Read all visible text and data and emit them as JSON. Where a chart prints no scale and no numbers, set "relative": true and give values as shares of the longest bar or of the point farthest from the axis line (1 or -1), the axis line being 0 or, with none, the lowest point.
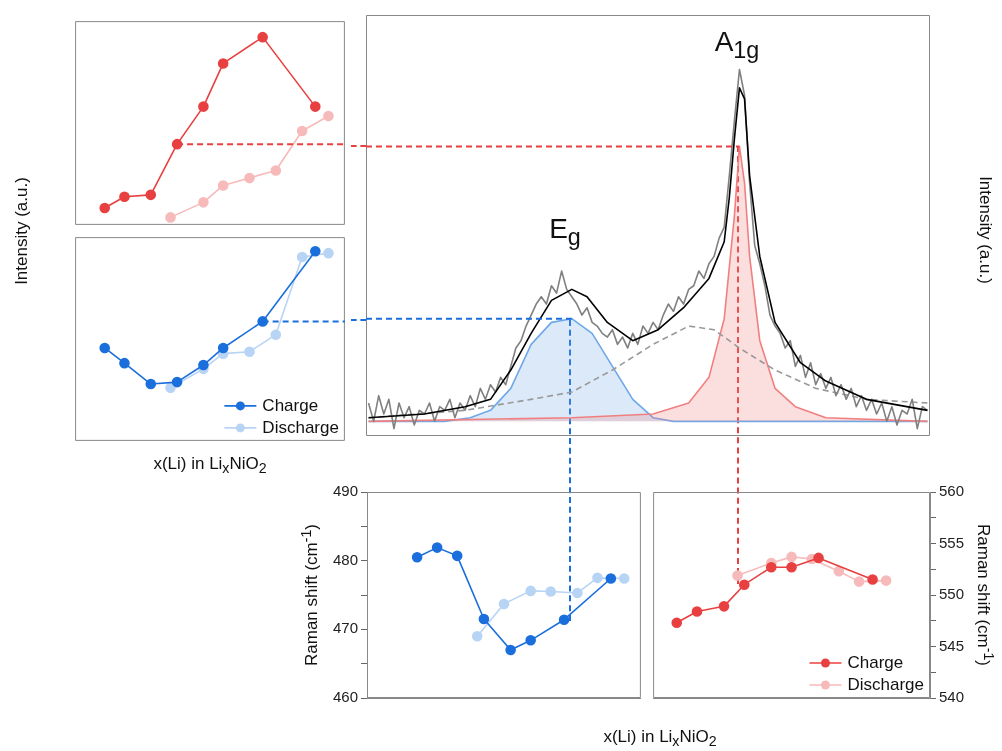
{
  "chart_data": [
    {
      "type": "line",
      "relative": true,
      "ylabel": "Intensity (a.u.)",
      "marker": "circle",
      "tick_labels": false,
      "ref_lines": [
        {
          "axis": "y",
          "value": 0.43,
          "color": "#e84040",
          "line_style": "dashed"
        }
      ],
      "categories": [
        null,
        null,
        null,
        null,
        null,
        null,
        null,
        null,
        null,
        null,
        null,
        null,
        null,
        null,
        null,
        null,
        null,
        null,
        null,
        null,
        null,
        null,
        null,
        null,
        null,
        null,
        null,
        null,
        null,
        null,
        null,
        null,
        null,
        null,
        null,
        null,
        null,
        null,
        null,
        null,
        null
      ],
      "series": [
        {
          "color": "#e84040",
          "values": [
            null,
            null,
            null,
            null,
            0.09,
            null,
            null,
            0.15,
            null,
            null,
            null,
            0.16,
            null,
            null,
            null,
            0.43,
            null,
            null,
            null,
            0.63,
            null,
            null,
            0.86,
            null,
            null,
            null,
            null,
            null,
            1,
            null,
            null,
            null,
            null,
            null,
            null,
            null,
            0.63,
            null,
            null,
            null,
            null
          ]
        },
        {
          "color": "#f7baba",
          "values": [
            null,
            null,
            null,
            null,
            null,
            null,
            null,
            null,
            null,
            null,
            null,
            null,
            null,
            null,
            0.04,
            null,
            null,
            null,
            null,
            0.12,
            null,
            null,
            0.21,
            null,
            null,
            null,
            0.25,
            null,
            null,
            null,
            0.29,
            null,
            null,
            null,
            0.5,
            null,
            null,
            null,
            0.58,
            null,
            null
          ]
        }
      ]
    },
    {
      "type": "line",
      "relative": true,
      "xlabel": "x(Li) in Li$_{x}$NiO$_{2}$",
      "marker": "circle",
      "tick_labels": false,
      "legend": "bottom right",
      "ref_lines": [
        {
          "axis": "y",
          "value": 0.63,
          "color": "#1a6fdc",
          "line_style": "dashed"
        }
      ],
      "categories": [
        null,
        null,
        null,
        null,
        null,
        null,
        null,
        null,
        null,
        null,
        null,
        null,
        null,
        null,
        null,
        null,
        null,
        null,
        null,
        null,
        null,
        null,
        null,
        null,
        null,
        null,
        null,
        null,
        null,
        null,
        null,
        null,
        null,
        null,
        null,
        null,
        null,
        null,
        null,
        null,
        null
      ],
      "series": [
        {
          "name": "Charge",
          "color": "#1a6fdc",
          "values": [
            null,
            null,
            null,
            null,
            0.49,
            null,
            null,
            0.41,
            null,
            null,
            null,
            0.3,
            null,
            null,
            null,
            0.31,
            null,
            null,
            null,
            0.4,
            null,
            null,
            0.49,
            null,
            null,
            null,
            null,
            null,
            0.63,
            null,
            null,
            null,
            null,
            null,
            null,
            null,
            1,
            null,
            null,
            null,
            null
          ]
        },
        {
          "name": "Discharge",
          "color": "#b8d4f5",
          "values": [
            null,
            null,
            null,
            null,
            null,
            null,
            null,
            null,
            null,
            null,
            null,
            null,
            null,
            null,
            0.28,
            null,
            null,
            null,
            null,
            0.38,
            null,
            null,
            0.46,
            null,
            null,
            null,
            0.47,
            null,
            null,
            null,
            0.56,
            null,
            null,
            null,
            0.97,
            null,
            null,
            null,
            0.99,
            null,
            null
          ]
        }
      ]
    },
    {
      "type": "line",
      "relative": true,
      "ylabel": "Intensity (a.u.)",
      "marker": "none",
      "tick_labels": false,
      "annotations": [
        "E$_{g}$",
        "A$_{1g}$"
      ],
      "ref_lines": [
        {
          "axis": "y",
          "value": 0.79,
          "color": "#e84040",
          "line_style": "dashed"
        },
        {
          "axis": "y",
          "value": 0.32,
          "color": "#1a6fdc",
          "line_style": "dashed"
        }
      ],
      "categories": [
        null,
        null,
        null,
        null,
        null,
        null,
        null,
        null,
        null,
        null,
        null,
        null,
        null,
        null,
        null,
        null,
        null,
        null,
        null,
        null,
        null,
        null,
        null,
        null,
        null,
        null,
        null,
        null,
        null,
        null,
        null,
        null,
        null,
        null,
        null,
        null,
        null,
        null,
        null,
        null,
        null,
        null,
        null,
        null,
        null,
        null,
        null,
        null,
        null,
        null,
        null,
        null,
        null,
        null,
        null,
        null,
        null,
        null,
        null,
        null,
        null,
        null,
        null,
        null,
        null,
        null,
        null,
        null,
        null,
        null,
        null,
        null,
        null,
        null,
        null,
        null,
        null,
        null,
        null,
        null,
        null,
        null,
        null,
        null,
        null,
        null,
        null,
        null,
        null,
        null,
        null,
        null,
        null,
        null,
        null,
        null,
        null,
        null,
        null,
        null,
        null,
        null,
        null,
        null,
        null,
        null,
        null,
        null,
        null,
        null,
        null
      ],
      "series": [
        {
          "type": "area",
          "color": "#6fa8e8",
          "values": [
            0.04,
            null,
            null,
            null,
            null,
            null,
            null,
            null,
            null,
            null,
            null,
            null,
            null,
            null,
            null,
            0.04,
            null,
            null,
            null,
            null,
            0.05,
            null,
            null,
            null,
            0.07,
            null,
            null,
            null,
            0.13,
            null,
            null,
            null,
            0.25,
            null,
            null,
            null,
            0.31,
            null,
            null,
            null,
            0.32,
            null,
            null,
            null,
            0.28,
            null,
            null,
            null,
            0.19,
            null,
            null,
            null,
            0.1,
            null,
            null,
            null,
            0.05,
            null,
            null,
            null,
            0.04,
            null,
            null,
            null,
            null,
            null,
            null,
            null,
            null,
            null,
            null,
            null,
            null,
            null,
            null,
            null,
            null,
            null,
            null,
            null,
            null,
            null,
            null,
            null,
            null,
            null,
            null,
            null,
            null,
            null,
            null,
            null,
            null,
            null,
            null,
            null,
            null,
            null,
            null,
            null,
            null,
            null,
            null,
            null,
            null,
            null,
            null,
            null,
            null,
            null,
            0.04
          ]
        },
        {
          "type": "area",
          "color": "#f08080",
          "values": [
            0.04,
            null,
            null,
            null,
            null,
            null,
            null,
            null,
            null,
            null,
            null,
            null,
            null,
            null,
            null,
            null,
            null,
            null,
            null,
            null,
            null,
            null,
            null,
            null,
            null,
            null,
            null,
            null,
            null,
            null,
            null,
            null,
            null,
            null,
            null,
            null,
            null,
            null,
            null,
            null,
            0.05,
            null,
            null,
            null,
            null,
            null,
            null,
            null,
            null,
            null,
            null,
            null,
            null,
            null,
            null,
            null,
            0.06,
            null,
            null,
            null,
            null,
            null,
            null,
            0.09,
            null,
            null,
            null,
            0.16,
            null,
            null,
            0.32,
            null,
            0.6,
            0.79,
            0.69,
            0.49,
            null,
            0.26,
            null,
            null,
            0.13,
            null,
            null,
            null,
            0.08,
            null,
            null,
            null,
            null,
            null,
            0.05,
            null,
            null,
            null,
            null,
            null,
            null,
            null,
            null,
            null,
            null,
            null,
            null,
            null,
            null,
            null,
            null,
            null,
            null,
            null,
            0.04
          ]
        },
        {
          "color": "#999999",
          "line_style": "dashed",
          "values": [
            0.05,
            null,
            null,
            null,
            null,
            null,
            null,
            null,
            null,
            null,
            null,
            null,
            null,
            null,
            null,
            null,
            null,
            null,
            null,
            0.07,
            null,
            null,
            null,
            null,
            null,
            null,
            null,
            null,
            null,
            null,
            null,
            null,
            0.1,
            null,
            null,
            null,
            null,
            null,
            null,
            null,
            0.12,
            null,
            null,
            null,
            null,
            null,
            null,
            null,
            0.18,
            null,
            null,
            null,
            null,
            null,
            null,
            null,
            0.25,
            null,
            null,
            null,
            null,
            null,
            null,
            0.3,
            null,
            null,
            null,
            null,
            0.29,
            null,
            null,
            null,
            null,
            0.24,
            null,
            null,
            null,
            null,
            null,
            null,
            0.18,
            null,
            null,
            null,
            null,
            null,
            null,
            null,
            0.13,
            null,
            null,
            null,
            null,
            null,
            null,
            null,
            null,
            null,
            0.1,
            null,
            null,
            null,
            null,
            null,
            null,
            null,
            null,
            null,
            null,
            null,
            0.09
          ]
        },
        {
          "color": "#808080",
          "values": [
            0.09,
            0.04,
            0.11,
            0.06,
            0.1,
            0.02,
            0.09,
            0.05,
            0.08,
            0.03,
            0.07,
            0.06,
            0.09,
            0.04,
            0.08,
            0.07,
            0.1,
            0.05,
            0.09,
            0.07,
            0.11,
            0.08,
            0.13,
            0.1,
            0.14,
            0.12,
            0.16,
            0.14,
            0.19,
            0.24,
            0.26,
            0.3,
            0.33,
            0.36,
            0.38,
            0.36,
            0.41,
            0.39,
            0.45,
            0.4,
            0.38,
            0.36,
            0.33,
            0.35,
            0.31,
            0.3,
            0.28,
            0.27,
            0.29,
            0.25,
            0.27,
            0.24,
            0.28,
            0.25,
            0.3,
            0.28,
            0.31,
            0.29,
            0.33,
            0.36,
            0.34,
            0.38,
            0.36,
            0.4,
            0.41,
            0.45,
            0.43,
            0.47,
            0.49,
            0.54,
            0.57,
            0.71,
            0.86,
            1,
            0.93,
            0.69,
            0.52,
            0.47,
            0.41,
            0.33,
            0.3,
            0.28,
            0.24,
            0.26,
            0.19,
            0.22,
            0.16,
            0.2,
            0.14,
            0.17,
            0.13,
            0.16,
            0.11,
            0.14,
            0.1,
            0.13,
            0.08,
            0.11,
            0.07,
            0.1,
            0.06,
            0.09,
            0.04,
            0.08,
            0.03,
            0.07,
            0.06,
            0.1,
            0.02,
            0.08,
            0.07
          ]
        },
        {
          "color": "#000000",
          "values": [
            0.05,
            null,
            null,
            null,
            null,
            null,
            null,
            null,
            null,
            null,
            null,
            0.06,
            null,
            null,
            null,
            null,
            null,
            null,
            null,
            0.08,
            null,
            null,
            null,
            null,
            0.1,
            null,
            null,
            null,
            0.18,
            null,
            null,
            null,
            0.28,
            null,
            null,
            null,
            0.37,
            null,
            null,
            null,
            0.4,
            null,
            null,
            0.38,
            null,
            null,
            null,
            0.31,
            null,
            null,
            null,
            null,
            0.26,
            null,
            null,
            null,
            null,
            0.29,
            null,
            null,
            null,
            null,
            0.35,
            null,
            null,
            null,
            null,
            0.43,
            null,
            null,
            0.53,
            0.65,
            0.81,
            0.95,
            0.92,
            0.71,
            null,
            0.49,
            null,
            null,
            0.31,
            null,
            null,
            null,
            null,
            0.2,
            null,
            null,
            null,
            null,
            0.15,
            null,
            null,
            null,
            null,
            null,
            null,
            null,
            0.1,
            null,
            null,
            null,
            null,
            null,
            null,
            null,
            null,
            null,
            null,
            null,
            0.07
          ]
        }
      ]
    },
    {
      "type": "line",
      "ylabel": "Raman shift (cm$^{-1}$)",
      "marker": "circle",
      "tick_labels": "y",
      "ylim": [
        460,
        490
      ],
      "yticks": [
        460,
        {
          "value": 465,
          "label": null
        },
        470,
        {
          "value": 475,
          "label": null
        },
        480,
        {
          "value": 485,
          "label": null
        },
        490
      ],
      "categories": [
        null,
        null,
        null,
        null,
        null,
        null,
        null,
        null,
        null,
        null,
        null,
        null,
        null,
        null,
        null,
        null,
        null,
        null,
        null,
        null,
        null,
        null,
        null,
        null,
        null,
        null,
        null,
        null,
        null,
        null,
        null,
        null,
        null,
        null,
        null,
        null,
        null,
        null,
        null,
        null,
        null
      ],
      "series": [
        {
          "color": "#1a6fdc",
          "values": [
            null,
            null,
            null,
            null,
            null,
            null,
            null,
            480.5,
            null,
            null,
            481.9,
            null,
            null,
            480.7,
            null,
            null,
            null,
            471.5,
            null,
            null,
            null,
            467.0,
            null,
            null,
            468.4,
            null,
            null,
            null,
            null,
            471.4,
            null,
            null,
            null,
            null,
            null,
            null,
            477.4,
            null,
            null,
            null,
            null
          ]
        },
        {
          "color": "#b8d4f5",
          "values": [
            null,
            null,
            null,
            null,
            null,
            null,
            null,
            null,
            null,
            null,
            null,
            null,
            null,
            null,
            null,
            null,
            469.0,
            null,
            null,
            null,
            473.7,
            null,
            null,
            null,
            475.6,
            null,
            null,
            475.5,
            null,
            null,
            null,
            475.3,
            null,
            null,
            477.5,
            null,
            null,
            null,
            477.4,
            null,
            null
          ]
        }
      ]
    },
    {
      "type": "line",
      "ylabel": "Raman shift (cm$^{-1}$)",
      "xlabel": "x(Li) in Li$_{x}$NiO$_{2}$",
      "marker": "circle",
      "tick_labels": "y",
      "legend": "bottom right",
      "ylim": [
        540,
        560
      ],
      "yticks": [
        540,
        {
          "value": 542.5,
          "label": null
        },
        545,
        {
          "value": 547.5,
          "label": null
        },
        550,
        {
          "value": 552.5,
          "label": null
        },
        555,
        {
          "value": 557.5,
          "label": null
        },
        560
      ],
      "categories": [
        null,
        null,
        null,
        null,
        null,
        null,
        null,
        null,
        null,
        null,
        null,
        null,
        null,
        null,
        null,
        null,
        null,
        null,
        null,
        null,
        null,
        null,
        null,
        null,
        null,
        null,
        null,
        null,
        null,
        null,
        null,
        null,
        null,
        null,
        null,
        null,
        null,
        null,
        null,
        null,
        null
      ],
      "series": [
        {
          "name": "Charge",
          "color": "#e84040",
          "values": [
            null,
            null,
            null,
            547.3,
            null,
            null,
            548.4,
            null,
            null,
            null,
            548.9,
            null,
            null,
            551.0,
            null,
            null,
            null,
            552.7,
            null,
            null,
            552.7,
            null,
            null,
            null,
            553.6,
            null,
            null,
            null,
            null,
            null,
            null,
            null,
            551.5,
            null,
            null,
            null,
            null,
            null,
            null,
            null,
            null
          ]
        },
        {
          "name": "Discharge",
          "color": "#f7baba",
          "values": [
            null,
            null,
            null,
            null,
            null,
            null,
            null,
            null,
            null,
            null,
            null,
            null,
            551.9,
            null,
            null,
            null,
            null,
            553.1,
            null,
            null,
            553.7,
            null,
            null,
            553.5,
            null,
            null,
            null,
            552.3,
            null,
            null,
            551.3,
            null,
            null,
            null,
            551.4,
            null,
            null,
            null,
            null,
            null,
            null
          ]
        }
      ]
    }
  ]
}
